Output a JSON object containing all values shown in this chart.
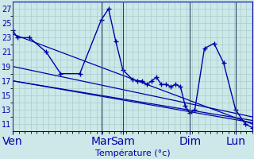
{
  "xlabel": "Température (°c)",
  "background_color": "#cce8e8",
  "grid_color": "#aacccc",
  "line_color": "#0000aa",
  "vline_color": "#334466",
  "ylim": [
    10,
    28
  ],
  "yticks": [
    11,
    13,
    15,
    17,
    19,
    21,
    23,
    25,
    27
  ],
  "xlim": [
    0,
    1.0
  ],
  "day_labels": [
    "Ven",
    "Mar",
    "Sam",
    "Dim",
    "Lun"
  ],
  "day_positions": [
    0.0,
    0.37,
    0.46,
    0.74,
    0.93
  ],
  "main_curve": [
    [
      0.0,
      24.0
    ],
    [
      0.02,
      23.0
    ],
    [
      0.07,
      23.0
    ],
    [
      0.14,
      21.0
    ],
    [
      0.2,
      18.0
    ],
    [
      0.28,
      18.0
    ],
    [
      0.37,
      25.5
    ],
    [
      0.4,
      27.0
    ],
    [
      0.43,
      22.5
    ],
    [
      0.46,
      18.5
    ],
    [
      0.5,
      17.2
    ],
    [
      0.52,
      17.0
    ],
    [
      0.54,
      17.0
    ],
    [
      0.56,
      16.5
    ],
    [
      0.58,
      17.0
    ],
    [
      0.6,
      17.5
    ],
    [
      0.62,
      16.5
    ],
    [
      0.64,
      16.5
    ],
    [
      0.66,
      16.2
    ],
    [
      0.68,
      16.5
    ],
    [
      0.7,
      16.2
    ],
    [
      0.72,
      13.5
    ],
    [
      0.74,
      12.5
    ],
    [
      0.76,
      13.0
    ],
    [
      0.8,
      21.5
    ],
    [
      0.84,
      22.2
    ],
    [
      0.88,
      19.5
    ],
    [
      0.93,
      13.0
    ],
    [
      0.97,
      11.0
    ],
    [
      1.0,
      10.5
    ]
  ],
  "trend_line1": [
    [
      0.0,
      23.5
    ],
    [
      1.0,
      11.0
    ]
  ],
  "trend_line2": [
    [
      0.0,
      19.0
    ],
    [
      1.0,
      12.0
    ]
  ],
  "trend_line3": [
    [
      0.0,
      17.0
    ],
    [
      1.0,
      11.2
    ]
  ],
  "trend_line4": [
    [
      0.0,
      17.0
    ],
    [
      1.0,
      11.5
    ]
  ]
}
